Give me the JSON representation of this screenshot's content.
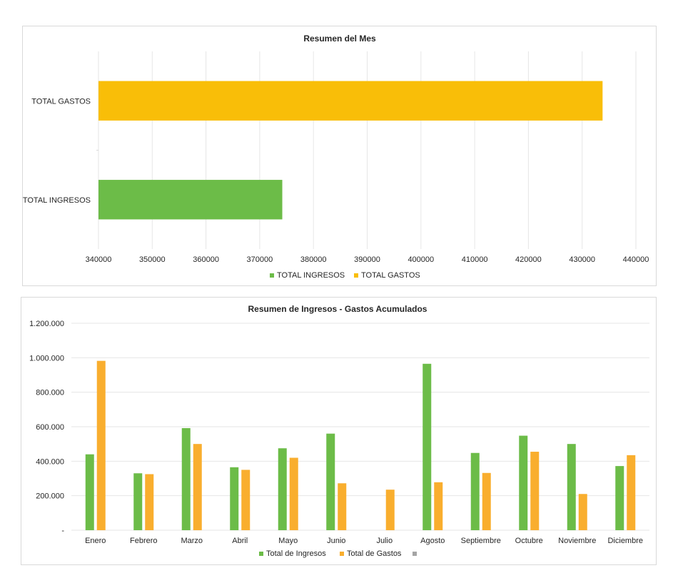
{
  "chart_data": [
    {
      "type": "bar",
      "orientation": "horizontal",
      "title": "Resumen del Mes",
      "categories": [
        "TOTAL INGRESOS",
        "TOTAL GASTOS"
      ],
      "series": [
        {
          "name": "TOTAL INGRESOS",
          "color": "#6CBC48",
          "values": [
            374200,
            null
          ]
        },
        {
          "name": "TOTAL GASTOS",
          "color": "#F9BE08",
          "values": [
            null,
            433800
          ]
        }
      ],
      "xlim": [
        340000,
        440000
      ],
      "xticks": [
        "340000",
        "350000",
        "360000",
        "370000",
        "380000",
        "390000",
        "400000",
        "410000",
        "420000",
        "430000",
        "440000"
      ],
      "grid": true,
      "legend": "bottom"
    },
    {
      "type": "bar",
      "orientation": "vertical",
      "title": "Resumen de Ingresos - Gastos Acumulados",
      "categories": [
        "Enero",
        "Febrero",
        "Marzo",
        "Abril",
        "Mayo",
        "Junio",
        "Julio",
        "Agosto",
        "Septiembre",
        "Octubre",
        "Noviembre",
        "Diciembre"
      ],
      "series": [
        {
          "name": "Total de Ingresos",
          "color": "#6CBC48",
          "values": [
            440000,
            330000,
            592000,
            365000,
            475000,
            560000,
            0,
            965000,
            448000,
            548000,
            500000,
            372000
          ]
        },
        {
          "name": "Total de Gastos",
          "color": "#F9AE2E",
          "values": [
            982000,
            325000,
            500000,
            350000,
            420000,
            272000,
            235000,
            278000,
            332000,
            455000,
            210000,
            435000
          ]
        },
        {
          "name": "",
          "color": "#A5A5A5",
          "values": [
            0,
            0,
            0,
            0,
            0,
            0,
            0,
            0,
            0,
            0,
            0,
            0
          ]
        }
      ],
      "ylim": [
        0,
        1200000
      ],
      "yticks": [
        {
          "value": 0,
          "label": "-"
        },
        {
          "value": 200000,
          "label": "200.000"
        },
        {
          "value": 400000,
          "label": "400.000"
        },
        {
          "value": 600000,
          "label": "600.000"
        },
        {
          "value": 800000,
          "label": "800.000"
        },
        {
          "value": 1000000,
          "label": "1.000.000"
        },
        {
          "value": 1200000,
          "label": "1.200.000"
        }
      ],
      "grid": true,
      "legend": "bottom"
    }
  ]
}
